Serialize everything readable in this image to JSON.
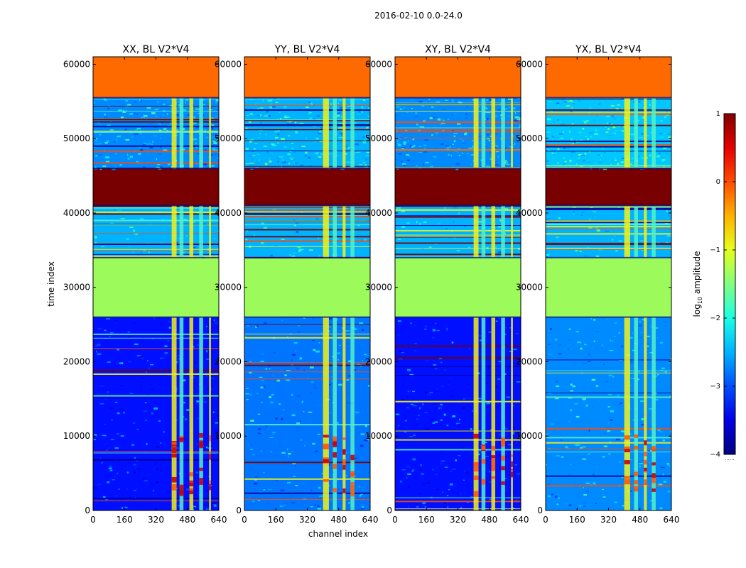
{
  "figure": {
    "suptitle": "2016-02-10 0.0-24.0",
    "xlabel": "channel index",
    "ylabel": "time index",
    "colorbar": {
      "label_prefix": "log",
      "label_sub": "10",
      "label_suffix": " amplitude",
      "ticks": [
        1,
        0,
        -1,
        -2,
        -3,
        -4
      ],
      "tick_labels": [
        "1",
        "0",
        "−1",
        "−2",
        "−3",
        "−4"
      ],
      "range": [
        -4,
        1
      ],
      "colormap": "jet",
      "minor_label": "......"
    }
  },
  "chart_data": [
    {
      "type": "heatmap",
      "title": "XX, BL V2*V4",
      "xlabel": "channel index",
      "ylabel": "time index",
      "xlim": [
        0,
        640
      ],
      "ylim": [
        0,
        61000
      ],
      "xticks": [
        0,
        160,
        320,
        480,
        640
      ],
      "yticks": [
        0,
        10000,
        20000,
        30000,
        40000,
        50000,
        60000
      ],
      "time_bands": [
        {
          "range": [
            0,
            26000
          ],
          "level": "low",
          "log10_amplitude": -3.3
        },
        {
          "range": [
            26000,
            34000
          ],
          "level": "flat",
          "log10_amplitude": -1.4
        },
        {
          "range": [
            34000,
            41000
          ],
          "level": "mixed",
          "log10_amplitude": -2.5
        },
        {
          "range": [
            41000,
            46000
          ],
          "level": "saturated",
          "log10_amplitude": 1.0
        },
        {
          "range": [
            46000,
            55500
          ],
          "level": "noise",
          "log10_amplitude": -2.7
        },
        {
          "range": [
            55500,
            61000
          ],
          "level": "flat",
          "log10_amplitude": 0.1
        }
      ],
      "bright_channels": [
        [
          400,
          425
        ],
        [
          440,
          460
        ],
        [
          490,
          510
        ],
        [
          540,
          560
        ],
        [
          590,
          600
        ]
      ]
    },
    {
      "type": "heatmap",
      "title": "YY, BL V2*V4",
      "xlabel": "channel index",
      "ylabel": "time index",
      "xlim": [
        0,
        640
      ],
      "ylim": [
        0,
        61000
      ],
      "xticks": [
        0,
        160,
        320,
        480,
        640
      ],
      "yticks": [
        0,
        10000,
        20000,
        30000,
        40000,
        50000,
        60000
      ],
      "time_bands": [
        {
          "range": [
            0,
            26000
          ],
          "level": "low",
          "log10_amplitude": -2.8
        },
        {
          "range": [
            26000,
            34000
          ],
          "level": "flat",
          "log10_amplitude": -1.4
        },
        {
          "range": [
            34000,
            41000
          ],
          "level": "mixed",
          "log10_amplitude": -2.5
        },
        {
          "range": [
            41000,
            46000
          ],
          "level": "saturated",
          "log10_amplitude": 1.0
        },
        {
          "range": [
            46000,
            55500
          ],
          "level": "noise",
          "log10_amplitude": -2.5
        },
        {
          "range": [
            55500,
            61000
          ],
          "level": "flat",
          "log10_amplitude": 0.1
        }
      ],
      "bright_channels": [
        [
          400,
          430
        ],
        [
          450,
          470
        ],
        [
          500,
          515
        ],
        [
          540,
          560
        ]
      ]
    },
    {
      "type": "heatmap",
      "title": "XY, BL V2*V4",
      "xlabel": "channel index",
      "ylabel": "time index",
      "xlim": [
        0,
        640
      ],
      "ylim": [
        0,
        61000
      ],
      "xticks": [
        0,
        160,
        320,
        480,
        640
      ],
      "yticks": [
        0,
        10000,
        20000,
        30000,
        40000,
        50000,
        60000
      ],
      "time_bands": [
        {
          "range": [
            0,
            26000
          ],
          "level": "low",
          "log10_amplitude": -3.3
        },
        {
          "range": [
            26000,
            34000
          ],
          "level": "flat",
          "log10_amplitude": -1.4
        },
        {
          "range": [
            34000,
            41000
          ],
          "level": "mixed",
          "log10_amplitude": -2.5
        },
        {
          "range": [
            41000,
            46000
          ],
          "level": "saturated",
          "log10_amplitude": 1.0
        },
        {
          "range": [
            46000,
            55500
          ],
          "level": "noise",
          "log10_amplitude": -2.7
        },
        {
          "range": [
            55500,
            61000
          ],
          "level": "flat",
          "log10_amplitude": 0.1
        }
      ],
      "bright_channels": [
        [
          400,
          425
        ],
        [
          440,
          460
        ],
        [
          490,
          510
        ],
        [
          540,
          560
        ],
        [
          590,
          600
        ]
      ]
    },
    {
      "type": "heatmap",
      "title": "YX, BL V2*V4",
      "xlabel": "channel index",
      "ylabel": "time index",
      "xlim": [
        0,
        640
      ],
      "ylim": [
        0,
        61000
      ],
      "xticks": [
        0,
        160,
        320,
        480,
        640
      ],
      "yticks": [
        0,
        10000,
        20000,
        30000,
        40000,
        50000,
        60000
      ],
      "time_bands": [
        {
          "range": [
            0,
            26000
          ],
          "level": "low",
          "log10_amplitude": -2.7
        },
        {
          "range": [
            26000,
            34000
          ],
          "level": "flat",
          "log10_amplitude": -1.4
        },
        {
          "range": [
            34000,
            41000
          ],
          "level": "mixed",
          "log10_amplitude": -2.5
        },
        {
          "range": [
            41000,
            46000
          ],
          "level": "saturated",
          "log10_amplitude": 1.0
        },
        {
          "range": [
            46000,
            55500
          ],
          "level": "noise",
          "log10_amplitude": -2.4
        },
        {
          "range": [
            55500,
            61000
          ],
          "level": "flat",
          "log10_amplitude": 0.1
        }
      ],
      "bright_channels": [
        [
          400,
          430
        ],
        [
          450,
          470
        ],
        [
          500,
          515
        ],
        [
          540,
          560
        ]
      ]
    }
  ],
  "colors": {
    "low_noise": "#0a30e6",
    "mid_noise": "#2a80ff",
    "flat_green": "#9cfa5a",
    "flat_orange": "#ff6a00",
    "saturated": "#780000",
    "stripe_yellow": "#f2f218",
    "stripe_cyan": "#55f2c2",
    "axis": "#000000"
  }
}
